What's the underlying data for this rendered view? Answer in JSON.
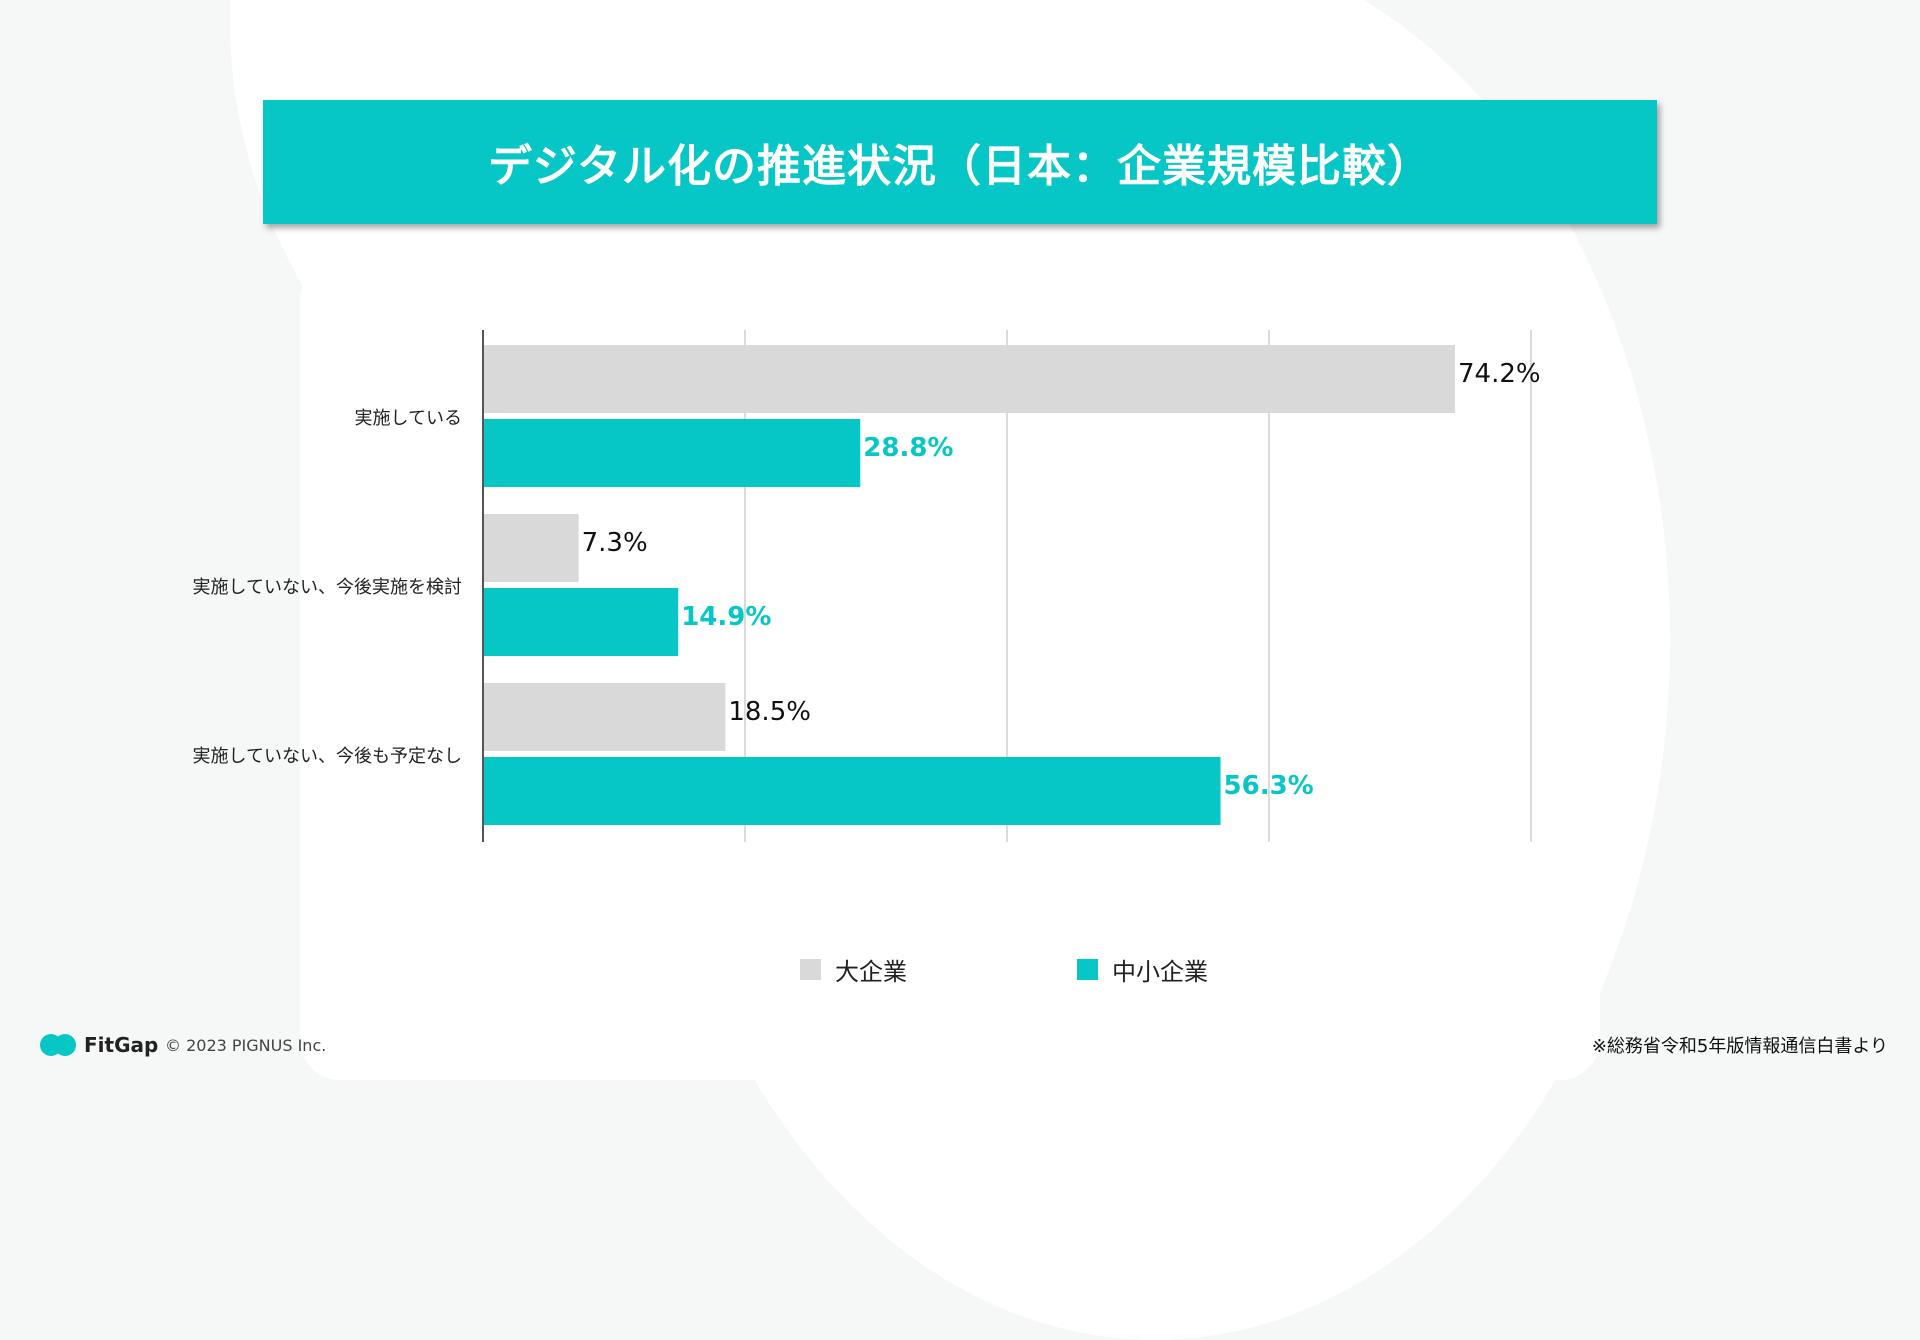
{
  "title": "デジタル化の推進状況（日本：企業規模比較）",
  "chart_data": {
    "type": "bar",
    "orientation": "horizontal",
    "categories": [
      "実施している",
      "実施していない、今後実施を検討",
      "実施していない、今後も予定なし"
    ],
    "series": [
      {
        "name": "大企業",
        "values": [
          74.2,
          7.3,
          18.5
        ],
        "labels": [
          "74.2%",
          "7.3%",
          "18.5%"
        ],
        "color": "#d9d9d9",
        "label_color": "#111111"
      },
      {
        "name": "中小企業",
        "values": [
          28.8,
          14.9,
          56.3
        ],
        "labels": [
          "28.8%",
          "14.9%",
          "56.3%"
        ],
        "color": "#06c7c5",
        "label_color": "#06c7c5"
      }
    ],
    "xlim": [
      0,
      80
    ],
    "grid": true,
    "legend_position": "bottom"
  },
  "footer": {
    "brand": "FitGap",
    "copyright": "© 2023 PIGNUS Inc.",
    "source": "※総務省令和5年版情報通信白書より"
  }
}
